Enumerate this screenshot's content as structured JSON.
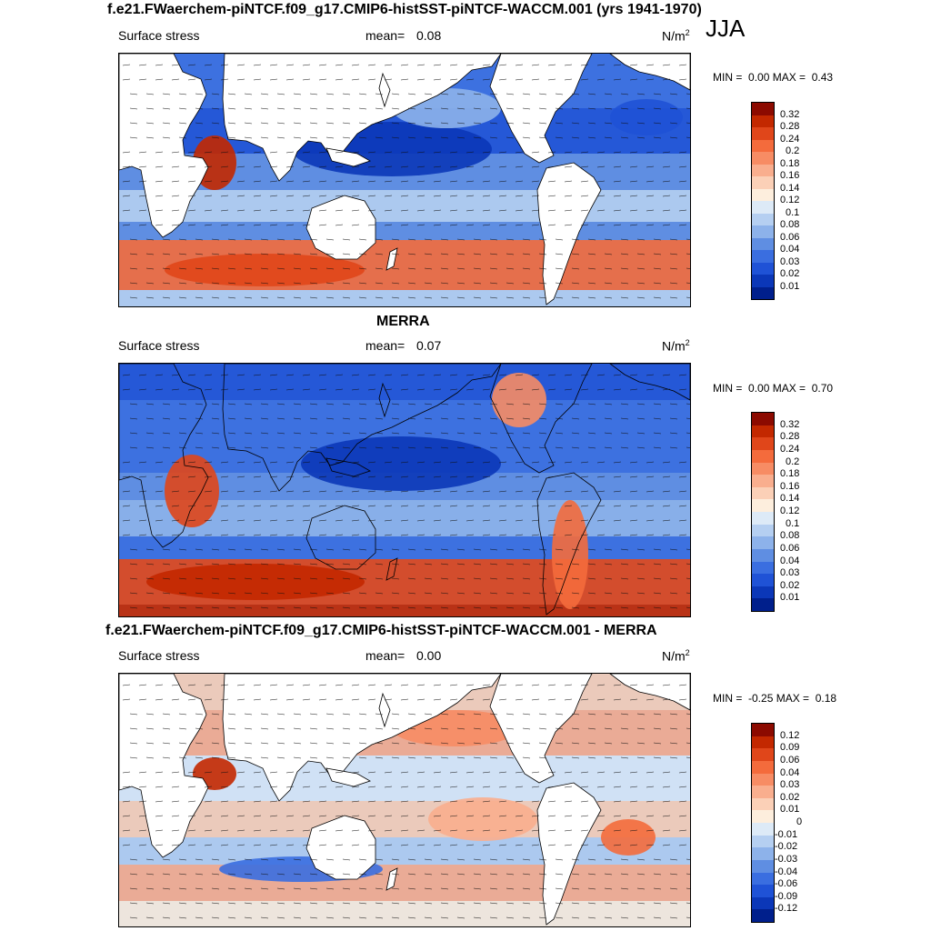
{
  "season": "JJA",
  "panels": [
    {
      "title": "f.e21.FWaerchem-piNTCF.f09_g17.CMIP6-histSST-piNTCF-WACCM.001 (yrs 1941-1970)",
      "variable": "Surface stress",
      "mean_label": "mean=",
      "mean_value": "0.08",
      "units": "N/m",
      "units_exp": "2",
      "min_label": "MIN =",
      "min_value": "0.00",
      "max_label": "MAX =",
      "max_value": "0.43",
      "colorbar_labels": [
        "0.32",
        "0.28",
        "0.24",
        "0.2",
        "0.18",
        "0.16",
        "0.14",
        "0.12",
        "0.1",
        "0.08",
        "0.06",
        "0.04",
        "0.03",
        "0.02",
        "0.01"
      ],
      "colors": [
        "#8c0a00",
        "#c32800",
        "#e0461a",
        "#f46b3c",
        "#f78c64",
        "#f9ae8e",
        "#fbd0b7",
        "#fdeedd",
        "#ddeaf7",
        "#b5cff1",
        "#8db2ea",
        "#5f8ee2",
        "#3a6ee0",
        "#1f52d6",
        "#0b37b8",
        "#001f8c"
      ]
    },
    {
      "title": "MERRA",
      "variable": "Surface stress",
      "mean_label": "mean=",
      "mean_value": "0.07",
      "units": "N/m",
      "units_exp": "2",
      "min_label": "MIN =",
      "min_value": "0.00",
      "max_label": "MAX =",
      "max_value": "0.70",
      "colorbar_labels": [
        "0.32",
        "0.28",
        "0.24",
        "0.2",
        "0.18",
        "0.16",
        "0.14",
        "0.12",
        "0.1",
        "0.08",
        "0.06",
        "0.04",
        "0.03",
        "0.02",
        "0.01"
      ],
      "colors": [
        "#8c0a00",
        "#c32800",
        "#e0461a",
        "#f46b3c",
        "#f78c64",
        "#f9ae8e",
        "#fbd0b7",
        "#fdeedd",
        "#ddeaf7",
        "#b5cff1",
        "#8db2ea",
        "#5f8ee2",
        "#3a6ee0",
        "#1f52d6",
        "#0b37b8",
        "#001f8c"
      ]
    },
    {
      "title": "f.e21.FWaerchem-piNTCF.f09_g17.CMIP6-histSST-piNTCF-WACCM.001 - MERRA",
      "variable": "Surface stress",
      "mean_label": "mean=",
      "mean_value": "0.00",
      "units": "N/m",
      "units_exp": "2",
      "min_label": "MIN =",
      "min_value": "-0.25",
      "max_label": "MAX =",
      "max_value": "0.18",
      "colorbar_labels": [
        "0.12",
        "0.09",
        "0.06",
        "0.04",
        "0.03",
        "0.02",
        "0.01",
        "0",
        "-0.01",
        "-0.02",
        "-0.03",
        "-0.04",
        "-0.06",
        "-0.09",
        "-0.12"
      ],
      "colors": [
        "#8c0a00",
        "#c32800",
        "#e0461a",
        "#f46b3c",
        "#f78c64",
        "#f9ae8e",
        "#fbd0b7",
        "#fdeedd",
        "#ddeaf7",
        "#b5cff1",
        "#8db2ea",
        "#5f8ee2",
        "#3a6ee0",
        "#1f52d6",
        "#0b37b8",
        "#001f8c"
      ]
    }
  ],
  "chart_data": [
    {
      "type": "heatmap",
      "title": "f.e21.FWaerchem-piNTCF.f09_g17.CMIP6-histSST-piNTCF-WACCM.001 (yrs 1941-1970)",
      "variable": "Surface stress",
      "season": "JJA",
      "units": "N/m2",
      "mean": 0.08,
      "min": 0.0,
      "max": 0.43,
      "levels": [
        0.01,
        0.02,
        0.03,
        0.04,
        0.06,
        0.08,
        0.1,
        0.12,
        0.14,
        0.16,
        0.18,
        0.2,
        0.24,
        0.28,
        0.32
      ]
    },
    {
      "type": "heatmap",
      "title": "MERRA",
      "variable": "Surface stress",
      "season": "JJA",
      "units": "N/m2",
      "mean": 0.07,
      "min": 0.0,
      "max": 0.7,
      "levels": [
        0.01,
        0.02,
        0.03,
        0.04,
        0.06,
        0.08,
        0.1,
        0.12,
        0.14,
        0.16,
        0.18,
        0.2,
        0.24,
        0.28,
        0.32
      ]
    },
    {
      "type": "heatmap",
      "title": "f.e21.FWaerchem-piNTCF.f09_g17.CMIP6-histSST-piNTCF-WACCM.001 - MERRA",
      "variable": "Surface stress",
      "season": "JJA",
      "units": "N/m2",
      "mean": 0.0,
      "min": -0.25,
      "max": 0.18,
      "levels": [
        -0.12,
        -0.09,
        -0.06,
        -0.04,
        -0.03,
        -0.02,
        -0.01,
        0,
        0.01,
        0.02,
        0.03,
        0.04,
        0.06,
        0.09,
        0.12
      ]
    }
  ]
}
